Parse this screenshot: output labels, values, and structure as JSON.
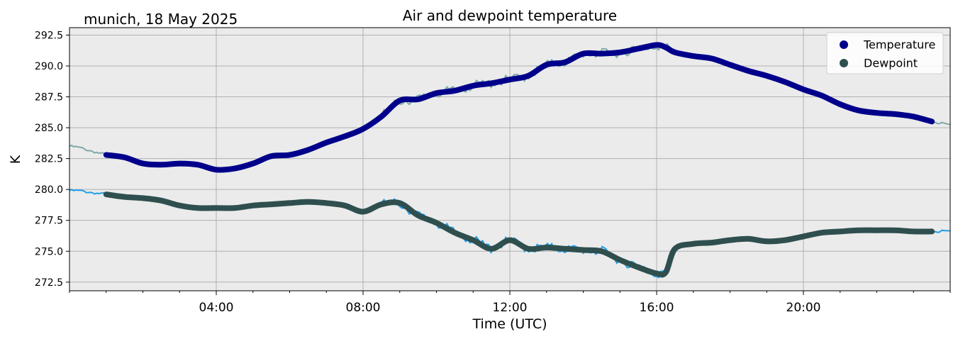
{
  "chart_data": {
    "type": "line",
    "title": "Air and dewpoint temperature",
    "subtitle": "munich, 18 May 2025",
    "xlabel": "Time (UTC)",
    "ylabel": "K",
    "xlim": [
      0,
      24
    ],
    "ylim": [
      271.8,
      293.1
    ],
    "x_ticks": [
      {
        "value": 4,
        "label": "04:00"
      },
      {
        "value": 8,
        "label": "08:00"
      },
      {
        "value": 12,
        "label": "12:00"
      },
      {
        "value": 16,
        "label": "16:00"
      },
      {
        "value": 20,
        "label": "20:00"
      }
    ],
    "y_ticks": [
      {
        "value": 272.5,
        "label": "272.5"
      },
      {
        "value": 275.0,
        "label": "275.0"
      },
      {
        "value": 277.5,
        "label": "277.5"
      },
      {
        "value": 280.0,
        "label": "280.0"
      },
      {
        "value": 282.5,
        "label": "282.5"
      },
      {
        "value": 285.0,
        "label": "285.0"
      },
      {
        "value": 287.5,
        "label": "287.5"
      },
      {
        "value": 290.0,
        "label": "290.0"
      },
      {
        "value": 292.5,
        "label": "292.5"
      }
    ],
    "grid": true,
    "legend_position": "top-right",
    "series": [
      {
        "name": "Temperature",
        "color": "#00008b",
        "raw_color": "#7fa8a8",
        "x": [
          0.0,
          0.25,
          0.5,
          1.0,
          1.5,
          2.0,
          2.5,
          3.0,
          3.5,
          4.0,
          4.5,
          5.0,
          5.5,
          6.0,
          6.5,
          7.0,
          7.5,
          8.0,
          8.5,
          9.0,
          9.5,
          10.0,
          10.5,
          11.0,
          11.5,
          12.0,
          12.5,
          13.0,
          13.5,
          14.0,
          14.5,
          15.0,
          15.5,
          16.0,
          16.25,
          16.5,
          17.0,
          17.5,
          18.0,
          18.5,
          19.0,
          19.5,
          20.0,
          20.5,
          21.0,
          21.5,
          22.0,
          22.5,
          23.0,
          23.5,
          24.0
        ],
        "values": [
          283.5,
          283.4,
          283.2,
          282.8,
          282.6,
          282.1,
          282.0,
          282.1,
          282.0,
          281.6,
          281.7,
          282.1,
          282.7,
          282.8,
          283.2,
          283.8,
          284.3,
          284.9,
          285.9,
          287.2,
          287.3,
          287.8,
          288.0,
          288.4,
          288.6,
          288.9,
          289.2,
          290.1,
          290.3,
          291.0,
          291.0,
          291.1,
          291.4,
          291.7,
          291.5,
          291.1,
          290.8,
          290.6,
          290.1,
          289.6,
          289.2,
          288.7,
          288.1,
          287.6,
          286.9,
          286.4,
          286.2,
          286.1,
          285.9,
          285.5,
          285.2
        ]
      },
      {
        "name": "Dewpoint",
        "color": "#2f4f4f",
        "raw_color": "#1f9eeb",
        "x": [
          0.0,
          0.25,
          0.5,
          1.0,
          1.5,
          2.0,
          2.5,
          3.0,
          3.5,
          4.0,
          4.5,
          5.0,
          5.5,
          6.0,
          6.5,
          7.0,
          7.5,
          8.0,
          8.5,
          9.0,
          9.5,
          10.0,
          10.5,
          11.0,
          11.5,
          12.0,
          12.5,
          13.0,
          13.5,
          14.0,
          14.5,
          15.0,
          15.5,
          16.0,
          16.25,
          16.5,
          17.0,
          17.5,
          18.0,
          18.5,
          19.0,
          19.5,
          20.0,
          20.5,
          21.0,
          21.5,
          22.0,
          22.5,
          23.0,
          23.5,
          24.0
        ],
        "values": [
          279.9,
          279.9,
          279.8,
          279.6,
          279.4,
          279.3,
          279.1,
          278.7,
          278.5,
          278.5,
          278.5,
          278.7,
          278.8,
          278.9,
          279.0,
          278.9,
          278.7,
          278.2,
          278.8,
          278.9,
          277.9,
          277.3,
          276.5,
          275.9,
          275.2,
          275.9,
          275.2,
          275.3,
          275.2,
          275.1,
          275.0,
          274.3,
          273.7,
          273.2,
          273.3,
          275.2,
          275.6,
          275.7,
          275.9,
          276.0,
          275.8,
          275.9,
          276.2,
          276.5,
          276.6,
          276.7,
          276.7,
          276.7,
          276.6,
          276.6,
          276.6
        ]
      }
    ]
  }
}
